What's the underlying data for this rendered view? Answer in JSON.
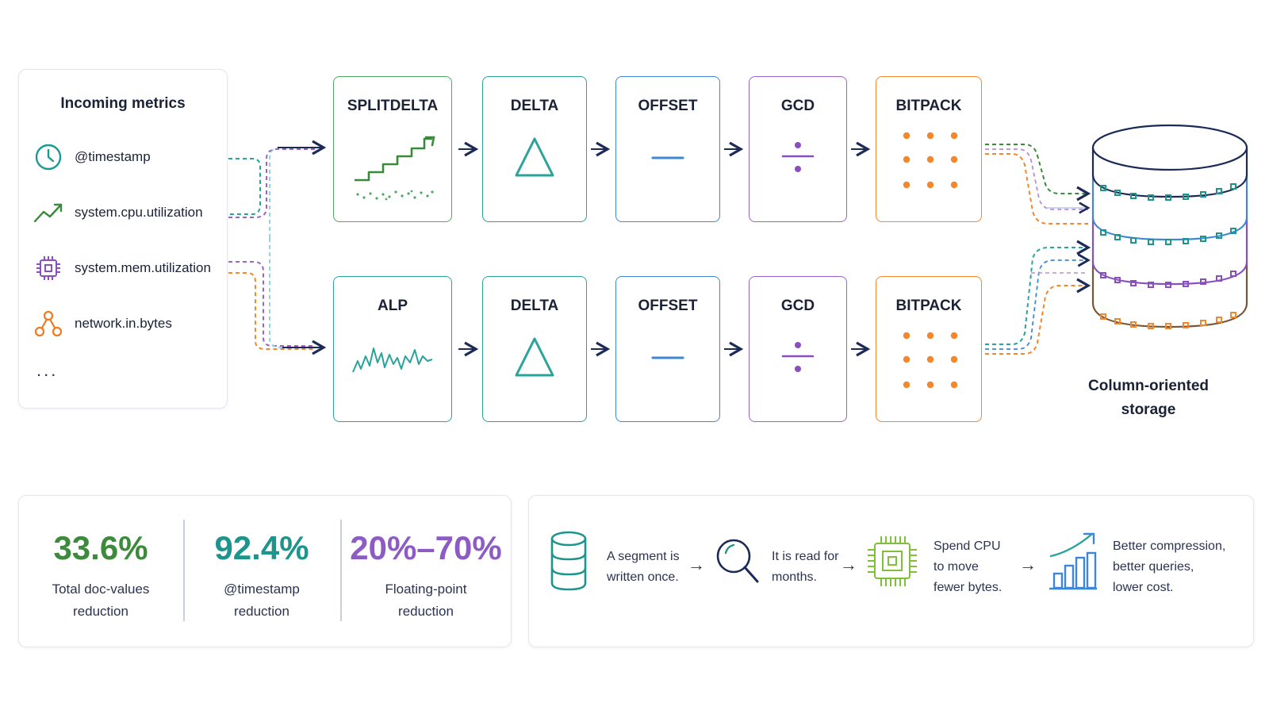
{
  "metrics": {
    "title": "Incoming metrics",
    "items": [
      {
        "label": "@timestamp",
        "icon": "clock-icon",
        "color": "#1a9a96"
      },
      {
        "label": "system.cpu.utilization",
        "icon": "trend-up-icon",
        "color": "#3a8a3c"
      },
      {
        "label": "system.mem.utilization",
        "icon": "chip-icon",
        "color": "#8a4fbe"
      },
      {
        "label": "network.in.bytes",
        "icon": "network-icon",
        "color": "#f07b1f"
      }
    ],
    "more": "..."
  },
  "pipelines": {
    "top": [
      "SPLITDELTA",
      "DELTA",
      "OFFSET",
      "GCD",
      "BITPACK"
    ],
    "bottom": [
      "ALP",
      "DELTA",
      "OFFSET",
      "GCD",
      "BITPACK"
    ]
  },
  "stage_colors": {
    "green": "#4caa5f",
    "teal": "#28a49a",
    "blue": "#3e86d6",
    "purple": "#9a63cc",
    "orange": "#f4862b"
  },
  "storage": {
    "label_line1": "Column-oriented",
    "label_line2": "storage",
    "icon": "database-icon"
  },
  "stats": [
    {
      "value": "33.6%",
      "line1": "Total doc-values",
      "line2": "reduction",
      "color": "#3d8a3c"
    },
    {
      "value": "92.4%",
      "line1": "@timestamp",
      "line2": "reduction",
      "color": "#1e958c"
    },
    {
      "value": "20%–70%",
      "line1": "Floating-point",
      "line2": "reduction",
      "color": "#8d5bc4"
    }
  ],
  "story": [
    {
      "icon": "database-icon",
      "line1": "A segment is",
      "line2": "written once.",
      "line3": ""
    },
    {
      "icon": "magnifier-icon",
      "line1": "It is read for",
      "line2": "months.",
      "line3": ""
    },
    {
      "icon": "cpu-icon",
      "line1": "Spend CPU",
      "line2": "to move",
      "line3": "fewer bytes."
    },
    {
      "icon": "growth-chart-icon",
      "line1": "Better compression,",
      "line2": "better queries,",
      "line3": "lower cost."
    }
  ]
}
